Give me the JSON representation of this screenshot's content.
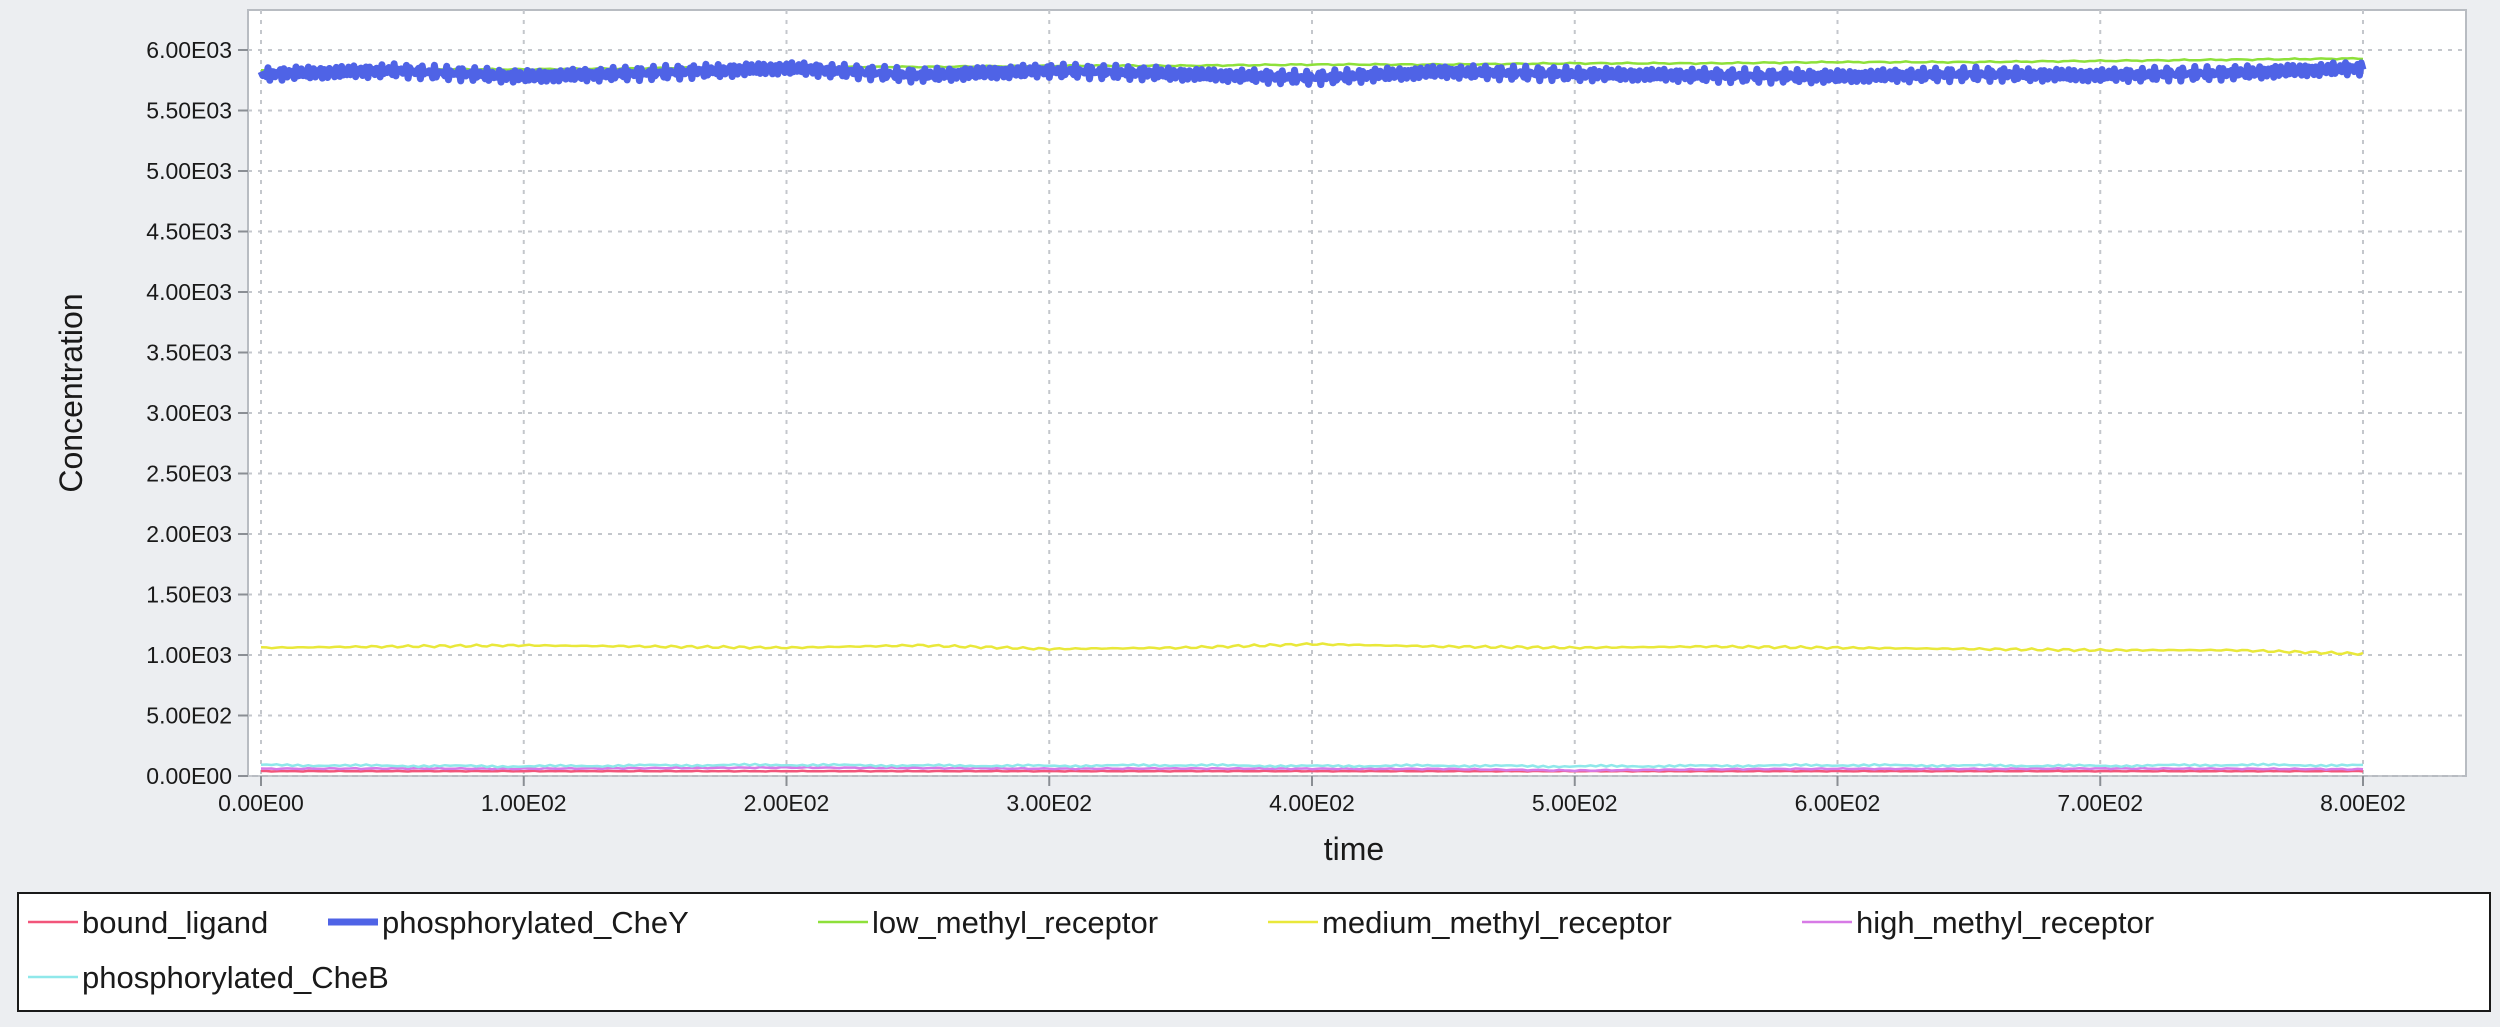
{
  "chart_data": {
    "type": "line",
    "xlabel": "time",
    "ylabel": "Concentration",
    "xlim": [
      0,
      800
    ],
    "ylim": [
      0,
      6000
    ],
    "grid": true,
    "legend_placement": "bottom",
    "x_ticks": [
      "0.00E00",
      "1.00E02",
      "2.00E02",
      "3.00E02",
      "4.00E02",
      "5.00E02",
      "6.00E02",
      "7.00E02",
      "8.00E02"
    ],
    "y_ticks": [
      "0.00E00",
      "5.00E02",
      "1.00E03",
      "1.50E03",
      "2.00E03",
      "2.50E03",
      "3.00E03",
      "3.50E03",
      "4.00E03",
      "4.50E03",
      "5.00E03",
      "5.50E03",
      "6.00E03"
    ],
    "x": [
      0,
      50,
      100,
      150,
      200,
      250,
      300,
      350,
      400,
      450,
      500,
      550,
      600,
      650,
      700,
      750,
      800
    ],
    "series": [
      {
        "name": "bound_ligand",
        "color": "#f2557a",
        "thick": false,
        "values": [
          40,
          40,
          40,
          40,
          40,
          40,
          40,
          40,
          40,
          40,
          40,
          40,
          40,
          40,
          40,
          40,
          40
        ]
      },
      {
        "name": "phosphorylated_CheY",
        "color": "#4f63e6",
        "thick": true,
        "values": [
          5800,
          5830,
          5780,
          5810,
          5850,
          5790,
          5830,
          5800,
          5770,
          5820,
          5800,
          5790,
          5780,
          5800,
          5790,
          5810,
          5850
        ]
      },
      {
        "name": "low_methyl_receptor",
        "color": "#8ee03a",
        "thick": false,
        "values": [
          5830,
          5840,
          5840,
          5850,
          5860,
          5860,
          5870,
          5870,
          5880,
          5880,
          5890,
          5890,
          5900,
          5900,
          5910,
          5920,
          5930
        ]
      },
      {
        "name": "medium_methyl_receptor",
        "color": "#e9e83a",
        "thick": false,
        "values": [
          1060,
          1070,
          1080,
          1070,
          1060,
          1080,
          1050,
          1060,
          1090,
          1070,
          1060,
          1070,
          1060,
          1050,
          1040,
          1040,
          1010
        ]
      },
      {
        "name": "high_methyl_receptor",
        "color": "#d77ae6",
        "thick": false,
        "values": [
          60,
          62,
          60,
          65,
          70,
          66,
          60,
          62,
          60,
          58,
          45,
          55,
          60,
          58,
          62,
          60,
          55
        ]
      },
      {
        "name": "phosphorylated_CheB",
        "color": "#8fe8ea",
        "thick": false,
        "values": [
          90,
          85,
          80,
          88,
          92,
          86,
          84,
          90,
          82,
          86,
          80,
          84,
          90,
          86,
          84,
          92,
          88
        ]
      }
    ]
  }
}
